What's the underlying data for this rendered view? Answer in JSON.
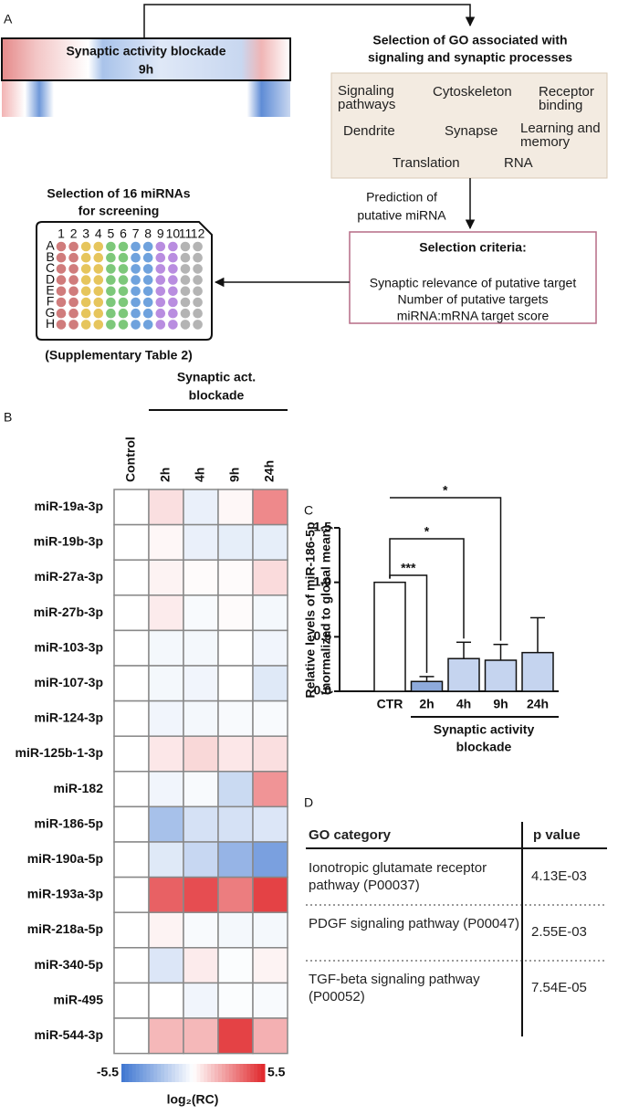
{
  "panel_labels": [
    "A",
    "B",
    "C",
    "D"
  ],
  "panel_a": {
    "heatmap_label": "Synaptic activity blockade",
    "heatmap_time": "9h",
    "go_title": [
      "Selection of GO associated with",
      "signaling and synaptic processes"
    ],
    "go_terms": [
      "Signaling pathways",
      "Cytoskeleton",
      "Receptor binding",
      "Dendrite",
      "Synapse",
      "Learning and memory",
      "Translation",
      "RNA"
    ],
    "prediction": [
      "Prediction of",
      "putative miRNA"
    ],
    "criteria_title": "Selection criteria:",
    "criteria": [
      "Synaptic relevance of putative target",
      "Number of putative targets",
      "miRNA:mRNA target score"
    ],
    "selection_title": [
      "Selection of 16 miRNAs",
      "for screening"
    ],
    "plate_columns": [
      "1",
      "2",
      "3",
      "4",
      "5",
      "6",
      "7",
      "8",
      "9",
      "10",
      "11",
      "12"
    ],
    "plate_rows": [
      "A",
      "B",
      "C",
      "D",
      "E",
      "F",
      "G",
      "H"
    ],
    "column_colors": [
      "#d07c7c",
      "#d07c7c",
      "#e6c55c",
      "#e6c55c",
      "#7dc87a",
      "#7dc87a",
      "#6fa2dd",
      "#6fa2dd",
      "#b98de0",
      "#b98de0",
      "#b4b4b4",
      "#b4b4b4"
    ],
    "footnote": "(Supplementary Table 2)"
  },
  "chart_data": [
    {
      "type": "heatmap",
      "group_label": [
        "Synaptic act.",
        "blockade"
      ],
      "columns": [
        "Control",
        "2h",
        "4h",
        "9h",
        "24h"
      ],
      "rows": [
        "miR-19a-3p",
        "miR-19b-3p",
        "miR-27a-3p",
        "miR-27b-3p",
        "miR-103-3p",
        "miR-107-3p",
        "miR-124-3p",
        "miR-125b-1-3p",
        "miR-182",
        "miR-186-5p",
        "miR-190a-5p",
        "miR-193a-3p",
        "miR-218a-5p",
        "miR-340-5p",
        "miR-495",
        "miR-544-3p"
      ],
      "values": [
        [
          0,
          0.8,
          -0.6,
          0.2,
          3.0
        ],
        [
          0,
          0.2,
          -0.6,
          -0.7,
          -0.7
        ],
        [
          0,
          0.3,
          0.1,
          0.1,
          0.9
        ],
        [
          0,
          0.5,
          -0.2,
          0.1,
          -0.3
        ],
        [
          0,
          -0.3,
          -0.3,
          0,
          -0.4
        ],
        [
          0,
          -0.3,
          -0.4,
          0,
          -0.9
        ],
        [
          0,
          -0.4,
          -0.3,
          -0.2,
          -0.2
        ],
        [
          0,
          0.6,
          1.0,
          0.6,
          0.8
        ],
        [
          0,
          -0.4,
          -0.2,
          -1.5,
          2.7
        ],
        [
          0,
          -2.5,
          -1.2,
          -1.2,
          -1.0
        ],
        [
          0,
          -0.9,
          -1.6,
          -3.0,
          -3.8
        ],
        [
          0,
          4.0,
          4.5,
          3.3,
          4.8
        ],
        [
          0,
          0.3,
          -0.2,
          -0.3,
          -0.3
        ],
        [
          0,
          -1.0,
          0.5,
          -0.1,
          0.3
        ],
        [
          0,
          0,
          -0.4,
          -0.1,
          -0.2
        ],
        [
          0,
          1.8,
          1.8,
          4.8,
          2.0
        ]
      ],
      "clim": [
        -5.5,
        5.5
      ],
      "cticks": [
        -5.5,
        5.5
      ],
      "colorbar_label": "log₂(RC)",
      "colors": {
        "low": "#3e76d1",
        "mid": "#ffffff",
        "high": "#e0262a"
      }
    },
    {
      "type": "bar",
      "categories": [
        "CTR",
        "2h",
        "4h",
        "9h",
        "24h"
      ],
      "values": [
        1.0,
        0.09,
        0.3,
        0.285,
        0.355
      ],
      "errors": [
        null,
        0.045,
        0.15,
        0.145,
        0.32
      ],
      "colors": [
        "#ffffff",
        "#8eaadb",
        "#c5d4ef",
        "#c5d4ef",
        "#c5d4ef"
      ],
      "ylim": [
        0,
        1.5
      ],
      "yticks": [
        {
          "value": 0,
          "label": "0.0"
        },
        {
          "value": 0.5,
          "label": "0.5"
        },
        {
          "value": 1,
          "label": "1.0"
        },
        {
          "value": 1.5,
          "label": "1.5"
        }
      ],
      "ylabel": [
        "Relative levels of miR-186-5p",
        "(normalized to global mean)"
      ],
      "xlabel": [
        "Synaptic activity",
        "blockade"
      ],
      "significance": [
        "***",
        "*",
        "*"
      ]
    }
  ],
  "panel_d": {
    "header": [
      "GO category",
      "p value"
    ],
    "rows": [
      [
        "Ionotropic glutamate receptor pathway (P00037)",
        "4.13E-03"
      ],
      [
        "PDGF signaling pathway (P00047)",
        "2.55E-03"
      ],
      [
        "TGF-beta signaling pathway (P00052)",
        "7.54E-05"
      ]
    ]
  }
}
